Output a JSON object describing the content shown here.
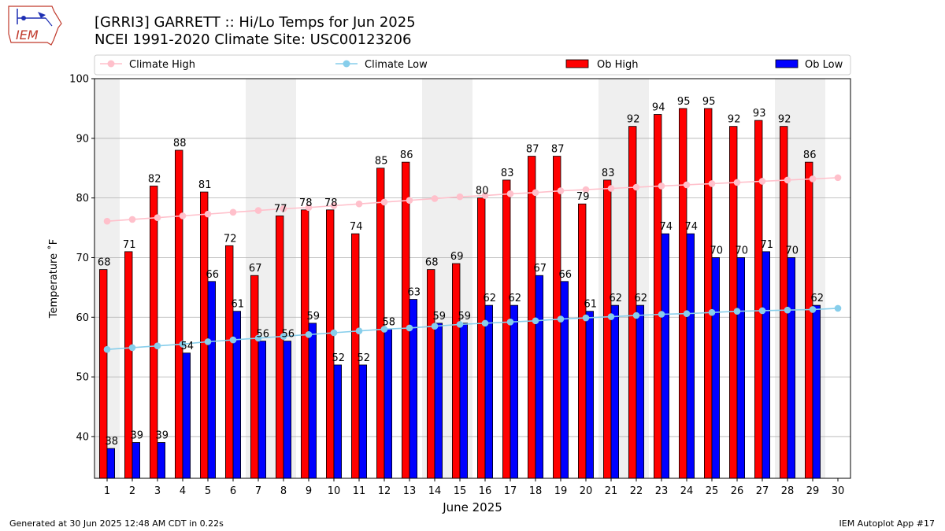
{
  "header": {
    "title": "[GRRI3] GARRETT :: Hi/Lo Temps for Jun 2025",
    "subtitle": "NCEI 1991-2020 Climate Site: USC00123206"
  },
  "logo": {
    "text": "IEM",
    "icon": "iem-iowa-logo-icon"
  },
  "footer": {
    "generated": "Generated at 30 Jun 2025 12:48 AM CDT in 0.22s",
    "app": "IEM Autoplot App #17"
  },
  "colors": {
    "ob_high": "#ff0000",
    "ob_low": "#0000ff",
    "climate_high": "#ffc0cb",
    "climate_low": "#87ceeb",
    "weekend_shade": "#efefef",
    "grid": "#b0b0b0"
  },
  "chart_data": {
    "type": "bar",
    "title": "[GRRI3] GARRETT :: Hi/Lo Temps for Jun 2025",
    "xlabel": "June 2025",
    "ylabel": "Temperature ˚F",
    "ylim": [
      33,
      100
    ],
    "yticks": [
      40,
      50,
      60,
      70,
      80,
      90,
      100
    ],
    "grid": "horizontal",
    "legend_placement": "top",
    "categories": [
      1,
      2,
      3,
      4,
      5,
      6,
      7,
      8,
      9,
      10,
      11,
      12,
      13,
      14,
      15,
      16,
      17,
      18,
      19,
      20,
      21,
      22,
      23,
      24,
      25,
      26,
      27,
      28,
      29,
      30
    ],
    "weekend_days": [
      1,
      7,
      8,
      14,
      15,
      21,
      22,
      28,
      29
    ],
    "series": [
      {
        "name": "Ob High",
        "kind": "bar",
        "color": "#ff0000",
        "values": [
          68,
          71,
          82,
          88,
          81,
          72,
          67,
          77,
          78,
          78,
          74,
          85,
          86,
          68,
          69,
          80,
          83,
          87,
          87,
          79,
          83,
          92,
          94,
          95,
          95,
          92,
          93,
          92,
          86,
          null
        ]
      },
      {
        "name": "Ob Low",
        "kind": "bar",
        "color": "#0000ff",
        "values": [
          38,
          39,
          39,
          54,
          66,
          61,
          56,
          56,
          59,
          52,
          52,
          58,
          63,
          59,
          59,
          62,
          62,
          67,
          66,
          61,
          62,
          62,
          74,
          74,
          70,
          70,
          71,
          70,
          62,
          null
        ]
      },
      {
        "name": "Climate High",
        "kind": "line",
        "color": "#ffc0cb",
        "values": [
          76.1,
          76.4,
          76.7,
          77.0,
          77.3,
          77.6,
          77.9,
          78.2,
          78.4,
          78.7,
          79.0,
          79.3,
          79.6,
          79.9,
          80.2,
          80.4,
          80.7,
          80.9,
          81.2,
          81.4,
          81.6,
          81.8,
          82.0,
          82.2,
          82.4,
          82.6,
          82.8,
          83.0,
          83.2,
          83.4
        ]
      },
      {
        "name": "Climate Low",
        "kind": "line",
        "color": "#87ceeb",
        "values": [
          54.6,
          54.9,
          55.2,
          55.5,
          55.9,
          56.2,
          56.5,
          56.8,
          57.1,
          57.4,
          57.7,
          58.0,
          58.2,
          58.5,
          58.8,
          59.0,
          59.2,
          59.4,
          59.7,
          59.9,
          60.1,
          60.3,
          60.5,
          60.6,
          60.8,
          61.0,
          61.1,
          61.2,
          61.3,
          61.5
        ]
      }
    ]
  }
}
